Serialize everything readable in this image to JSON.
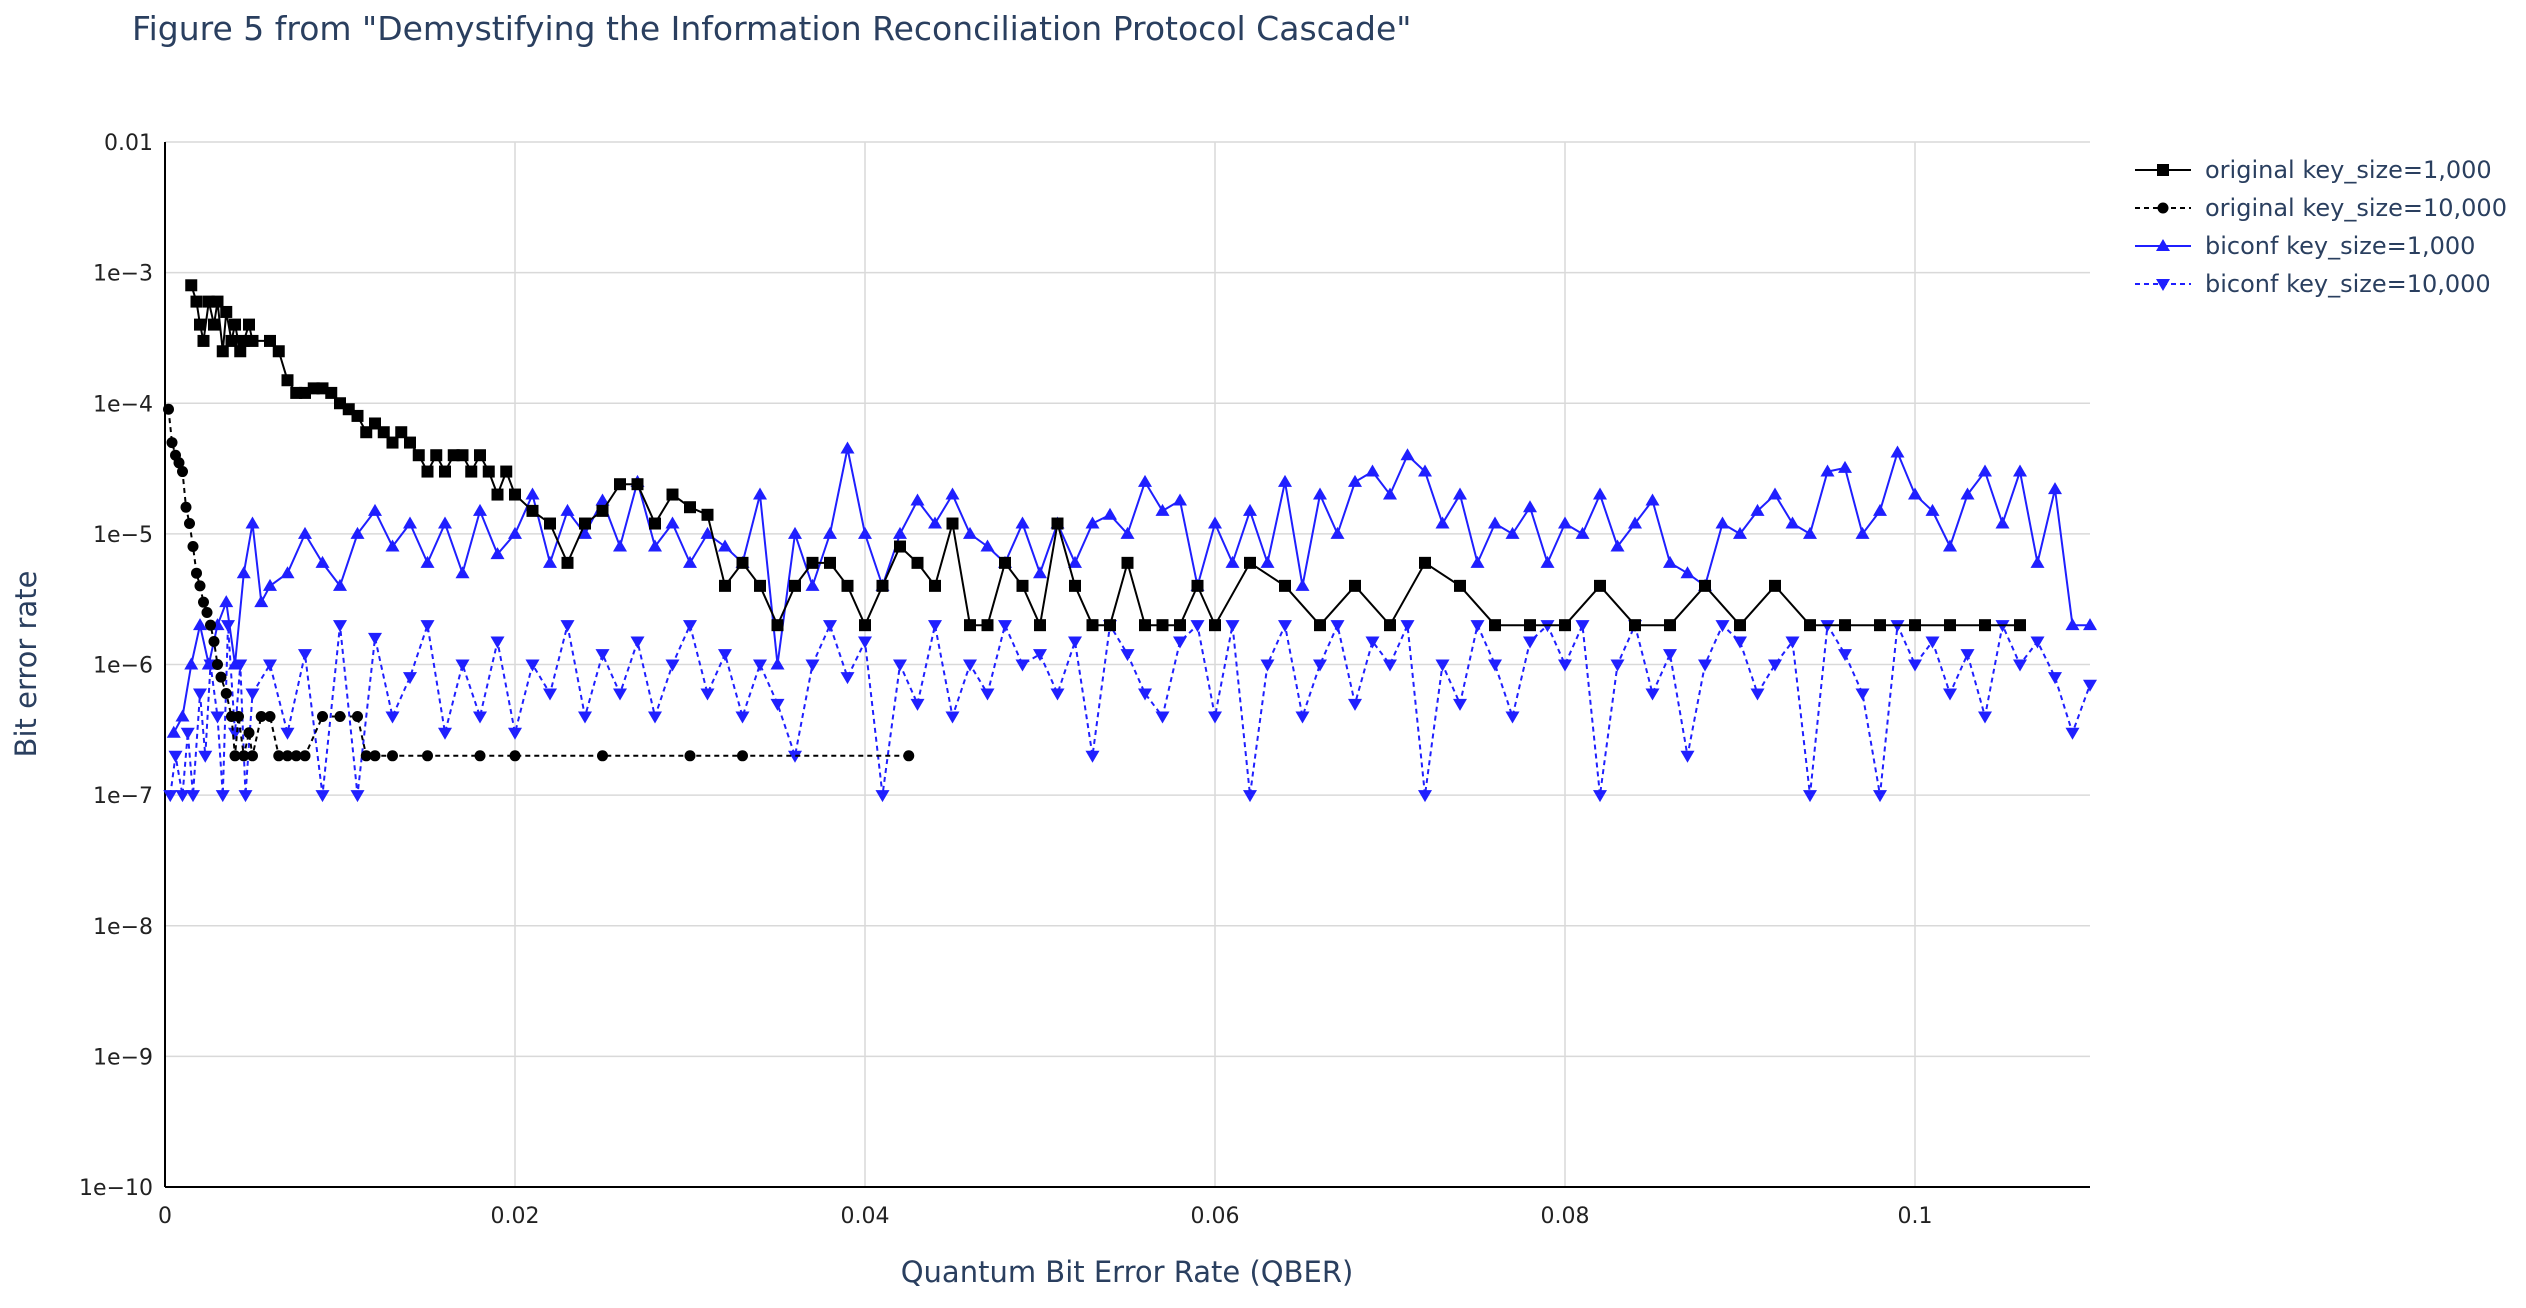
{
  "chart_data": {
    "type": "line",
    "title": "Figure 5 from \"Demystifying the Information Reconciliation Protocol Cascade\"",
    "xlabel": "Quantum Bit Error Rate (QBER)",
    "ylabel": "Bit error rate",
    "xlim": [
      0,
      0.11
    ],
    "ylim": [
      1e-10,
      0.01
    ],
    "y_scale": "log",
    "grid": true,
    "legend_position": "top-right",
    "x_ticks": [
      0,
      0.02,
      0.04,
      0.06,
      0.08,
      0.1
    ],
    "x_tick_labels": [
      "0",
      "0.02",
      "0.04",
      "0.06",
      "0.08",
      "0.1"
    ],
    "y_ticks": [
      1e-10,
      1e-09,
      1e-08,
      1e-07,
      1e-06,
      1e-05,
      0.0001,
      0.001,
      0.01
    ],
    "y_tick_labels": [
      "1e−10",
      "1e−9",
      "1e−8",
      "1e−7",
      "1e−6",
      "1e−5",
      "1e−4",
      "1e−3",
      "0.01"
    ],
    "series": [
      {
        "name": "original key_size=1,000",
        "color": "#000000",
        "dash": "solid",
        "marker": "square",
        "x": [
          0.0015,
          0.0018,
          0.002,
          0.0022,
          0.0025,
          0.0028,
          0.003,
          0.0033,
          0.0035,
          0.0038,
          0.004,
          0.0043,
          0.0045,
          0.0048,
          0.005,
          0.006,
          0.0065,
          0.007,
          0.0075,
          0.008,
          0.0085,
          0.009,
          0.0095,
          0.01,
          0.0105,
          0.011,
          0.0115,
          0.012,
          0.0125,
          0.013,
          0.0135,
          0.014,
          0.0145,
          0.015,
          0.0155,
          0.016,
          0.0165,
          0.017,
          0.0175,
          0.018,
          0.0185,
          0.019,
          0.0195,
          0.02,
          0.021,
          0.022,
          0.023,
          0.024,
          0.025,
          0.026,
          0.027,
          0.028,
          0.029,
          0.03,
          0.031,
          0.032,
          0.033,
          0.034,
          0.035,
          0.036,
          0.037,
          0.038,
          0.039,
          0.04,
          0.041,
          0.042,
          0.043,
          0.044,
          0.045,
          0.046,
          0.047,
          0.048,
          0.049,
          0.05,
          0.051,
          0.052,
          0.053,
          0.054,
          0.055,
          0.056,
          0.057,
          0.058,
          0.059,
          0.06,
          0.062,
          0.064,
          0.066,
          0.068,
          0.07,
          0.072,
          0.074,
          0.076,
          0.078,
          0.08,
          0.082,
          0.084,
          0.086,
          0.088,
          0.09,
          0.092,
          0.094,
          0.096,
          0.098,
          0.1,
          0.102,
          0.104,
          0.106
        ],
        "y": [
          0.0008,
          0.0006,
          0.0004,
          0.0003,
          0.0006,
          0.0004,
          0.0006,
          0.00025,
          0.0005,
          0.0003,
          0.0004,
          0.00025,
          0.0003,
          0.0004,
          0.0003,
          0.0003,
          0.00025,
          0.00015,
          0.00012,
          0.00012,
          0.00013,
          0.00013,
          0.00012,
          0.0001,
          9e-05,
          8e-05,
          6e-05,
          7e-05,
          6e-05,
          5e-05,
          6e-05,
          5e-05,
          4e-05,
          3e-05,
          4e-05,
          3e-05,
          4e-05,
          4e-05,
          3e-05,
          4e-05,
          3e-05,
          2e-05,
          3e-05,
          2e-05,
          1.5e-05,
          1.2e-05,
          6e-06,
          1.2e-05,
          1.5e-05,
          2.4e-05,
          2.4e-05,
          1.2e-05,
          2e-05,
          1.6e-05,
          1.4e-05,
          4e-06,
          6e-06,
          4e-06,
          2e-06,
          4e-06,
          6e-06,
          6e-06,
          4e-06,
          2e-06,
          4e-06,
          8e-06,
          6e-06,
          4e-06,
          1.2e-05,
          2e-06,
          2e-06,
          6e-06,
          4e-06,
          2e-06,
          1.2e-05,
          4e-06,
          2e-06,
          2e-06,
          6e-06,
          2e-06,
          2e-06,
          2e-06,
          4e-06,
          2e-06,
          6e-06,
          4e-06,
          2e-06,
          4e-06,
          2e-06,
          6e-06,
          4e-06,
          2e-06,
          2e-06,
          2e-06,
          4e-06,
          2e-06,
          2e-06,
          4e-06,
          2e-06,
          4e-06,
          2e-06,
          2e-06,
          2e-06,
          2e-06,
          2e-06,
          2e-06,
          2e-06
        ]
      },
      {
        "name": "original key_size=10,000",
        "color": "#000000",
        "dash": "dash",
        "marker": "circle",
        "x": [
          0.0002,
          0.0004,
          0.0006,
          0.0008,
          0.001,
          0.0012,
          0.0014,
          0.0016,
          0.0018,
          0.002,
          0.0022,
          0.0024,
          0.0026,
          0.0028,
          0.003,
          0.0032,
          0.0035,
          0.0038,
          0.004,
          0.0042,
          0.0045,
          0.0048,
          0.005,
          0.0055,
          0.006,
          0.0065,
          0.007,
          0.0075,
          0.008,
          0.009,
          0.01,
          0.011,
          0.0115,
          0.012,
          0.013,
          0.015,
          0.018,
          0.02,
          0.025,
          0.03,
          0.033,
          0.0425
        ],
        "y": [
          9e-05,
          5e-05,
          4e-05,
          3.5e-05,
          3e-05,
          1.6e-05,
          1.2e-05,
          8e-06,
          5e-06,
          4e-06,
          3e-06,
          2.5e-06,
          2e-06,
          1.5e-06,
          1e-06,
          8e-07,
          6e-07,
          4e-07,
          2e-07,
          4e-07,
          2e-07,
          3e-07,
          2e-07,
          4e-07,
          4e-07,
          2e-07,
          2e-07,
          2e-07,
          2e-07,
          4e-07,
          4e-07,
          4e-07,
          2e-07,
          2e-07,
          2e-07,
          2e-07,
          2e-07,
          2e-07,
          2e-07,
          2e-07,
          2e-07,
          2e-07
        ]
      },
      {
        "name": "biconf key_size=1,000",
        "color": "#1f1fff",
        "dash": "solid",
        "marker": "triangle-up",
        "x": [
          0.0005,
          0.001,
          0.0015,
          0.002,
          0.0025,
          0.003,
          0.0035,
          0.004,
          0.0045,
          0.005,
          0.0055,
          0.006,
          0.007,
          0.008,
          0.009,
          0.01,
          0.011,
          0.012,
          0.013,
          0.014,
          0.015,
          0.016,
          0.017,
          0.018,
          0.019,
          0.02,
          0.021,
          0.022,
          0.023,
          0.024,
          0.025,
          0.026,
          0.027,
          0.028,
          0.029,
          0.03,
          0.031,
          0.032,
          0.033,
          0.034,
          0.035,
          0.036,
          0.037,
          0.038,
          0.039,
          0.04,
          0.041,
          0.042,
          0.043,
          0.044,
          0.045,
          0.046,
          0.047,
          0.048,
          0.049,
          0.05,
          0.051,
          0.052,
          0.053,
          0.054,
          0.055,
          0.056,
          0.057,
          0.058,
          0.059,
          0.06,
          0.061,
          0.062,
          0.063,
          0.064,
          0.065,
          0.066,
          0.067,
          0.068,
          0.069,
          0.07,
          0.071,
          0.072,
          0.073,
          0.074,
          0.075,
          0.076,
          0.077,
          0.078,
          0.079,
          0.08,
          0.081,
          0.082,
          0.083,
          0.084,
          0.085,
          0.086,
          0.087,
          0.088,
          0.089,
          0.09,
          0.091,
          0.092,
          0.093,
          0.094,
          0.095,
          0.096,
          0.097,
          0.098,
          0.099,
          0.1,
          0.101,
          0.102,
          0.103,
          0.104,
          0.105,
          0.106,
          0.107,
          0.108,
          0.109,
          0.11
        ],
        "y": [
          3e-07,
          4e-07,
          1e-06,
          2e-06,
          1e-06,
          2e-06,
          3e-06,
          1e-06,
          5e-06,
          1.2e-05,
          3e-06,
          4e-06,
          5e-06,
          1e-05,
          6e-06,
          4e-06,
          1e-05,
          1.5e-05,
          8e-06,
          1.2e-05,
          6e-06,
          1.2e-05,
          5e-06,
          1.5e-05,
          7e-06,
          1e-05,
          2e-05,
          6e-06,
          1.5e-05,
          1e-05,
          1.8e-05,
          8e-06,
          2.5e-05,
          8e-06,
          1.2e-05,
          6e-06,
          1e-05,
          8e-06,
          6e-06,
          2e-05,
          1e-06,
          1e-05,
          4e-06,
          1e-05,
          4.5e-05,
          1e-05,
          4e-06,
          1e-05,
          1.8e-05,
          1.2e-05,
          2e-05,
          1e-05,
          8e-06,
          6e-06,
          1.2e-05,
          5e-06,
          1.2e-05,
          6e-06,
          1.2e-05,
          1.4e-05,
          1e-05,
          2.5e-05,
          1.5e-05,
          1.8e-05,
          4e-06,
          1.2e-05,
          6e-06,
          1.5e-05,
          6e-06,
          2.5e-05,
          4e-06,
          2e-05,
          1e-05,
          2.5e-05,
          3e-05,
          2e-05,
          4e-05,
          3e-05,
          1.2e-05,
          2e-05,
          6e-06,
          1.2e-05,
          1e-05,
          1.6e-05,
          6e-06,
          1.2e-05,
          1e-05,
          2e-05,
          8e-06,
          1.2e-05,
          1.8e-05,
          6e-06,
          5e-06,
          4e-06,
          1.2e-05,
          1e-05,
          1.5e-05,
          2e-05,
          1.2e-05,
          1e-05,
          3e-05,
          3.2e-05,
          1e-05,
          1.5e-05,
          4.2e-05,
          2e-05,
          1.5e-05,
          8e-06,
          2e-05,
          3e-05,
          1.2e-05,
          3e-05,
          6e-06,
          2.2e-05,
          2e-06,
          2e-06
        ]
      },
      {
        "name": "biconf key_size=10,000",
        "color": "#1f1fff",
        "dash": "dash",
        "marker": "triangle-down",
        "x": [
          0.0003,
          0.0006,
          0.001,
          0.0013,
          0.0016,
          0.002,
          0.0023,
          0.0026,
          0.003,
          0.0033,
          0.0036,
          0.004,
          0.0043,
          0.0046,
          0.005,
          0.006,
          0.007,
          0.008,
          0.009,
          0.01,
          0.011,
          0.012,
          0.013,
          0.014,
          0.015,
          0.016,
          0.017,
          0.018,
          0.019,
          0.02,
          0.021,
          0.022,
          0.023,
          0.024,
          0.025,
          0.026,
          0.027,
          0.028,
          0.029,
          0.03,
          0.031,
          0.032,
          0.033,
          0.034,
          0.035,
          0.036,
          0.037,
          0.038,
          0.039,
          0.04,
          0.041,
          0.042,
          0.043,
          0.044,
          0.045,
          0.046,
          0.047,
          0.048,
          0.049,
          0.05,
          0.051,
          0.052,
          0.053,
          0.054,
          0.055,
          0.056,
          0.057,
          0.058,
          0.059,
          0.06,
          0.061,
          0.062,
          0.063,
          0.064,
          0.065,
          0.066,
          0.067,
          0.068,
          0.069,
          0.07,
          0.071,
          0.072,
          0.073,
          0.074,
          0.075,
          0.076,
          0.077,
          0.078,
          0.079,
          0.08,
          0.081,
          0.082,
          0.083,
          0.084,
          0.085,
          0.086,
          0.087,
          0.088,
          0.089,
          0.09,
          0.091,
          0.092,
          0.093,
          0.094,
          0.095,
          0.096,
          0.097,
          0.098,
          0.099,
          0.1,
          0.101,
          0.102,
          0.103,
          0.104,
          0.105,
          0.106,
          0.107,
          0.108,
          0.109,
          0.11
        ],
        "y": [
          1e-07,
          2e-07,
          1e-07,
          3e-07,
          1e-07,
          6e-07,
          2e-07,
          1e-06,
          4e-07,
          1e-07,
          2e-06,
          3e-07,
          1e-06,
          1e-07,
          6e-07,
          1e-06,
          3e-07,
          1.2e-06,
          1e-07,
          2e-06,
          1e-07,
          1.6e-06,
          4e-07,
          8e-07,
          2e-06,
          3e-07,
          1e-06,
          4e-07,
          1.5e-06,
          3e-07,
          1e-06,
          6e-07,
          2e-06,
          4e-07,
          1.2e-06,
          6e-07,
          1.5e-06,
          4e-07,
          1e-06,
          2e-06,
          6e-07,
          1.2e-06,
          4e-07,
          1e-06,
          5e-07,
          2e-07,
          1e-06,
          2e-06,
          8e-07,
          1.5e-06,
          1e-07,
          1e-06,
          5e-07,
          2e-06,
          4e-07,
          1e-06,
          6e-07,
          2e-06,
          1e-06,
          1.2e-06,
          6e-07,
          1.5e-06,
          2e-07,
          2e-06,
          1.2e-06,
          6e-07,
          4e-07,
          1.5e-06,
          2e-06,
          4e-07,
          2e-06,
          1e-07,
          1e-06,
          2e-06,
          4e-07,
          1e-06,
          2e-06,
          5e-07,
          1.5e-06,
          1e-06,
          2e-06,
          1e-07,
          1e-06,
          5e-07,
          2e-06,
          1e-06,
          4e-07,
          1.5e-06,
          2e-06,
          1e-06,
          2e-06,
          1e-07,
          1e-06,
          2e-06,
          6e-07,
          1.2e-06,
          2e-07,
          1e-06,
          2e-06,
          1.5e-06,
          6e-07,
          1e-06,
          1.5e-06,
          1e-07,
          2e-06,
          1.2e-06,
          6e-07,
          1e-07,
          2e-06,
          1e-06,
          1.5e-06,
          6e-07,
          1.2e-06,
          4e-07,
          2e-06,
          1e-06,
          1.5e-06,
          8e-07,
          3e-07,
          7e-07
        ]
      }
    ]
  }
}
